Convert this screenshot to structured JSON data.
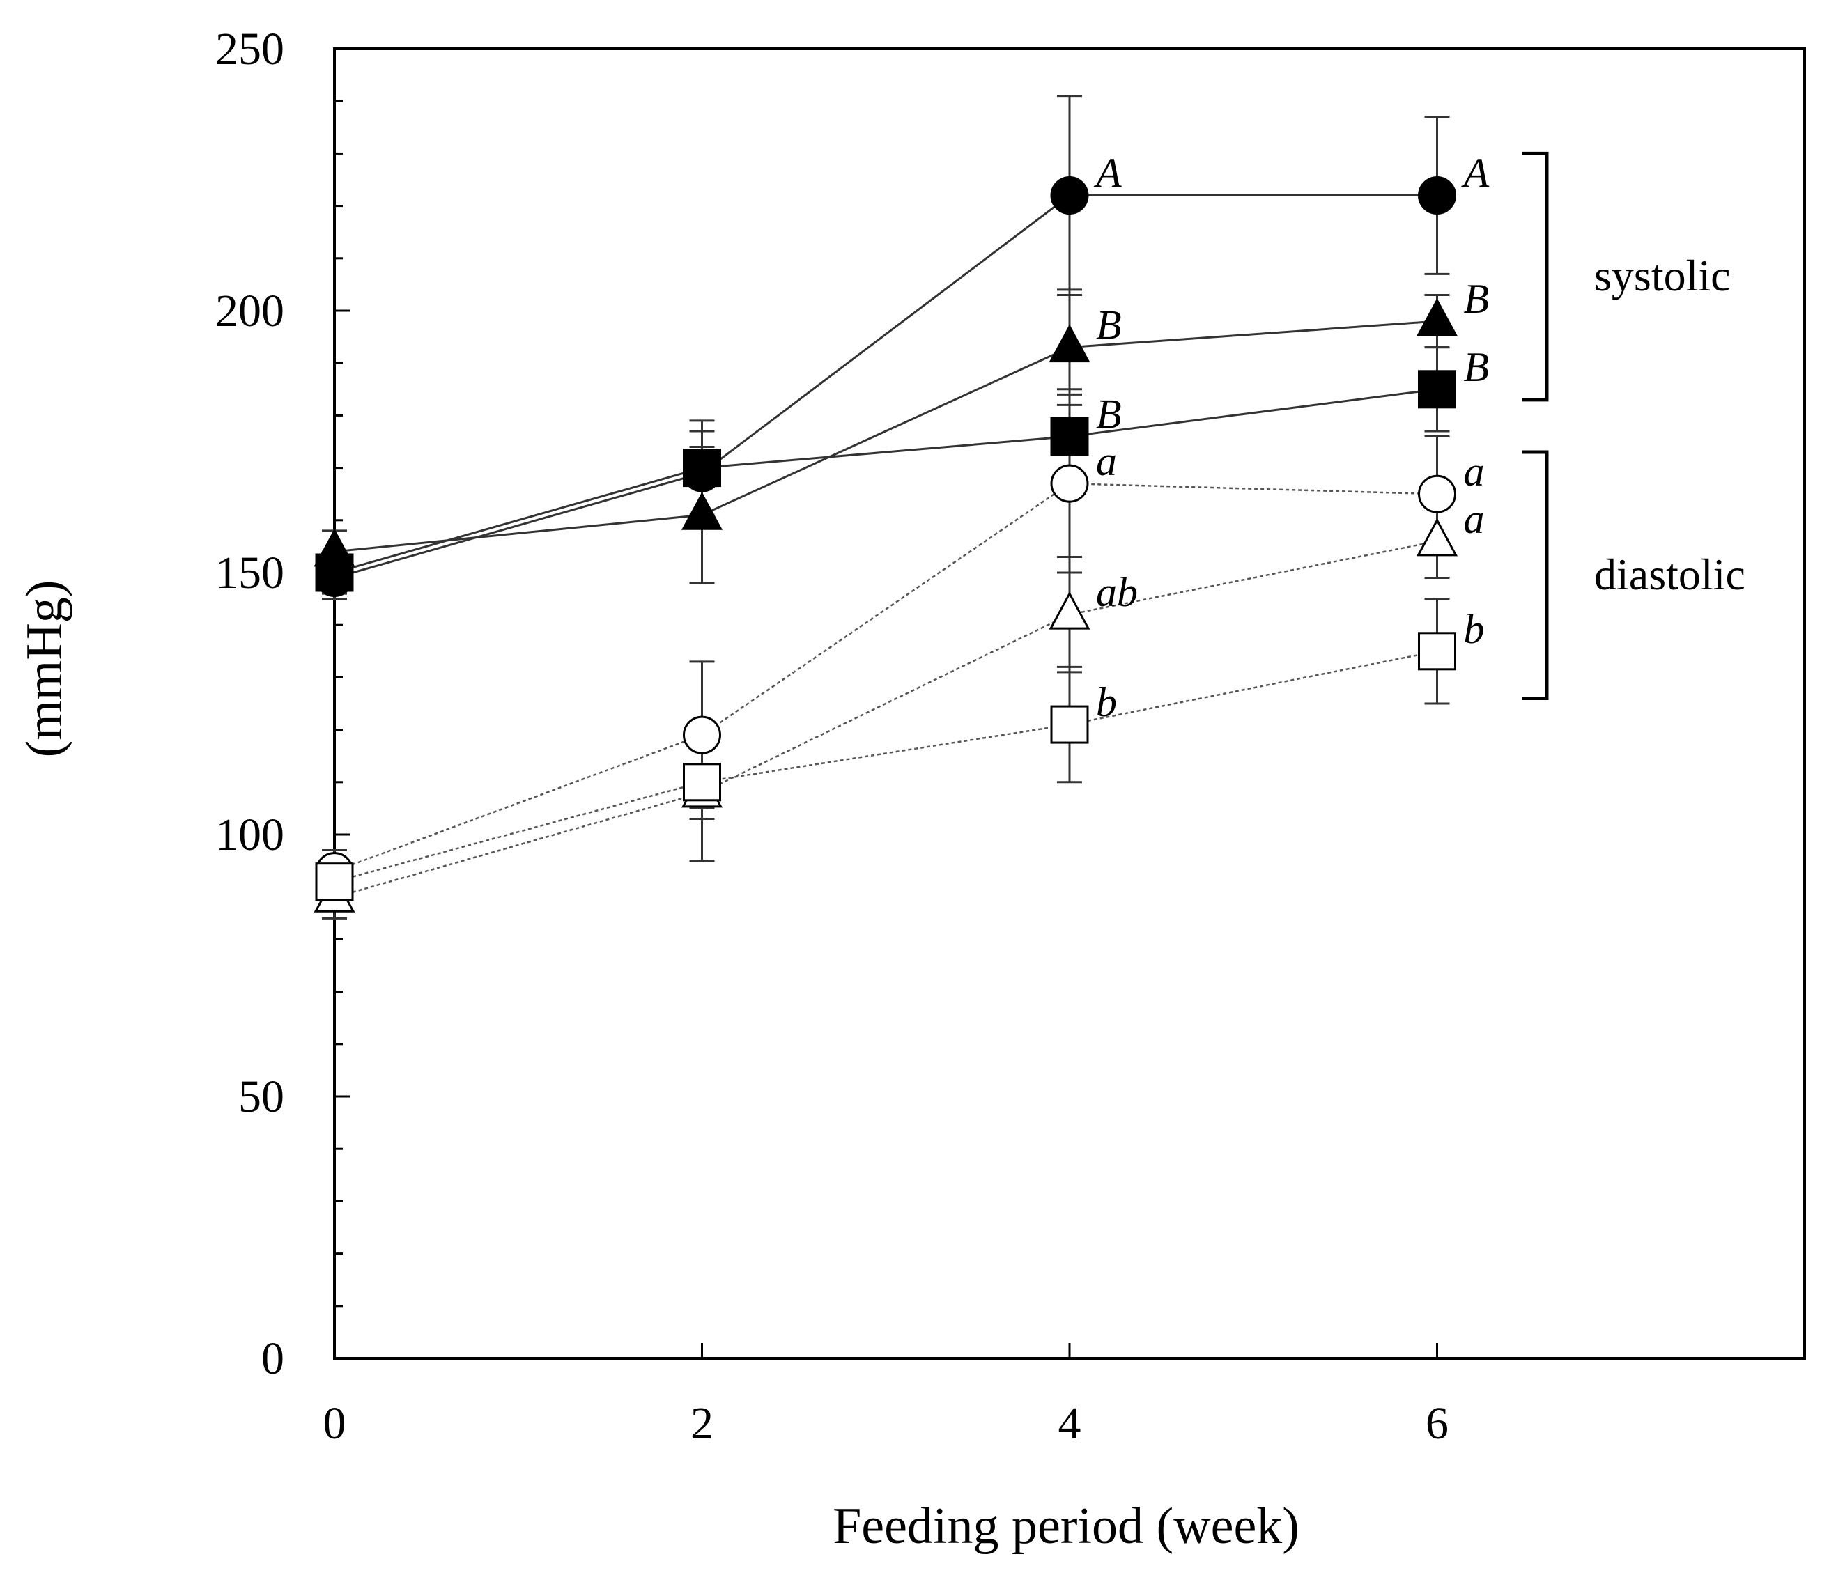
{
  "chart_data": {
    "type": "line",
    "title": "",
    "xlabel": "Feeding period (week)",
    "ylabel": "(mmHg)",
    "xlim": [
      0,
      8
    ],
    "ylim": [
      0,
      250
    ],
    "xticks": [
      0,
      2,
      4,
      6
    ],
    "yticks": [
      0,
      50,
      100,
      150,
      200,
      250
    ],
    "grid": false,
    "series": [
      {
        "name": "systolic-circle",
        "group": "systolic",
        "marker": "circle",
        "filled": true,
        "line": "solid",
        "x": [
          0,
          2,
          4,
          6
        ],
        "y": [
          149,
          169,
          222,
          222
        ],
        "err": [
          4,
          8,
          19,
          15
        ],
        "labels": [
          "",
          "",
          "A",
          "A"
        ]
      },
      {
        "name": "systolic-triangle",
        "group": "systolic",
        "marker": "triangle",
        "filled": true,
        "line": "solid",
        "x": [
          0,
          2,
          4,
          6
        ],
        "y": [
          154,
          161,
          193,
          198
        ],
        "err": [
          4,
          13,
          11,
          5
        ],
        "labels": [
          "",
          "",
          "B",
          "B"
        ]
      },
      {
        "name": "systolic-square",
        "group": "systolic",
        "marker": "square",
        "filled": true,
        "line": "solid",
        "x": [
          0,
          2,
          4,
          6
        ],
        "y": [
          150,
          170,
          176,
          185
        ],
        "err": [
          4,
          9,
          9,
          8
        ],
        "labels": [
          "",
          "",
          "B",
          "B"
        ]
      },
      {
        "name": "diastolic-circle",
        "group": "diastolic",
        "marker": "circle",
        "filled": false,
        "line": "dotted",
        "x": [
          0,
          2,
          4,
          6
        ],
        "y": [
          93,
          119,
          167,
          165
        ],
        "err": [
          4,
          14,
          17,
          11
        ],
        "labels": [
          "",
          "",
          "a",
          "a"
        ]
      },
      {
        "name": "diastolic-triangle",
        "group": "diastolic",
        "marker": "triangle",
        "filled": false,
        "line": "dotted",
        "x": [
          0,
          2,
          4,
          6
        ],
        "y": [
          88,
          108,
          142,
          156
        ],
        "err": [
          4,
          13,
          11,
          7
        ],
        "labels": [
          "",
          "",
          "ab",
          "a"
        ]
      },
      {
        "name": "diastolic-square",
        "group": "diastolic",
        "marker": "square",
        "filled": false,
        "line": "dotted",
        "x": [
          0,
          2,
          4,
          6
        ],
        "y": [
          91,
          110,
          121,
          135
        ],
        "err": [
          4,
          7,
          11,
          10
        ],
        "labels": [
          "",
          "",
          "b",
          "b"
        ]
      }
    ],
    "groups": [
      {
        "name": "systolic",
        "label": "systolic",
        "range": [
          183,
          230
        ]
      },
      {
        "name": "diastolic",
        "label": "diastolic",
        "range": [
          126,
          173
        ]
      }
    ]
  }
}
